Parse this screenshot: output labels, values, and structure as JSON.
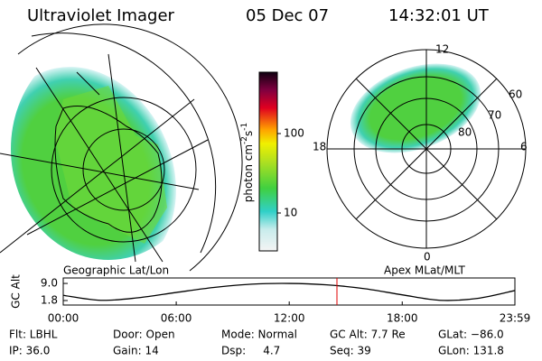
{
  "header": {
    "title": "Ultraviolet Imager",
    "date": "05 Dec 07",
    "time": "14:32:01 UT"
  },
  "left_panel": {
    "caption": "Geographic Lat/Lon"
  },
  "colorbar": {
    "label": [
      "photon cm",
      "-2",
      "s",
      "-1"
    ],
    "ticks": [
      "100",
      "10"
    ]
  },
  "right_panel": {
    "caption": "Apex MLat/MLT",
    "mlt_labels": [
      "12",
      "6",
      "0",
      "18"
    ],
    "lat_labels": [
      "60",
      "70",
      "80"
    ]
  },
  "chart_data": {
    "type": "line",
    "ylabel": "GC Alt",
    "x": [
      0,
      2,
      4,
      6,
      8,
      10,
      12,
      14,
      16,
      18,
      20,
      22,
      23.983
    ],
    "series": [
      {
        "name": "GC Alt",
        "color": "#000000",
        "values": [
          4.0,
          1.9,
          3.0,
          5.2,
          7.3,
          8.7,
          9.0,
          8.4,
          6.8,
          4.2,
          1.9,
          2.7,
          6.0
        ]
      }
    ],
    "marker_x": 14.534,
    "marker_color": "#e00000",
    "xlim": [
      0,
      23.983
    ],
    "xticks": [
      {
        "value": 0,
        "label": "00:00"
      },
      {
        "value": 6,
        "label": "06:00"
      },
      {
        "value": 12,
        "label": "12:00"
      },
      {
        "value": 18,
        "label": "18:00"
      },
      {
        "value": 23.983,
        "label": "23:59"
      }
    ],
    "ylim": [
      -0.1,
      11.3
    ],
    "yticks": [
      {
        "value": 9.0,
        "label": "9.0"
      },
      {
        "value": 1.8,
        "label": "1.8"
      }
    ]
  },
  "footer": {
    "rows": [
      [
        "Flt: LBHL",
        "Door: Open",
        "Mode: Normal",
        "GC Alt: 7.7 Re",
        "GLat: −86.0"
      ],
      [
        "IP: 36.0",
        "Gain: 14",
        "Dsp:     4.7",
        "Seq: 39",
        "GLon: 131.8"
      ]
    ]
  }
}
